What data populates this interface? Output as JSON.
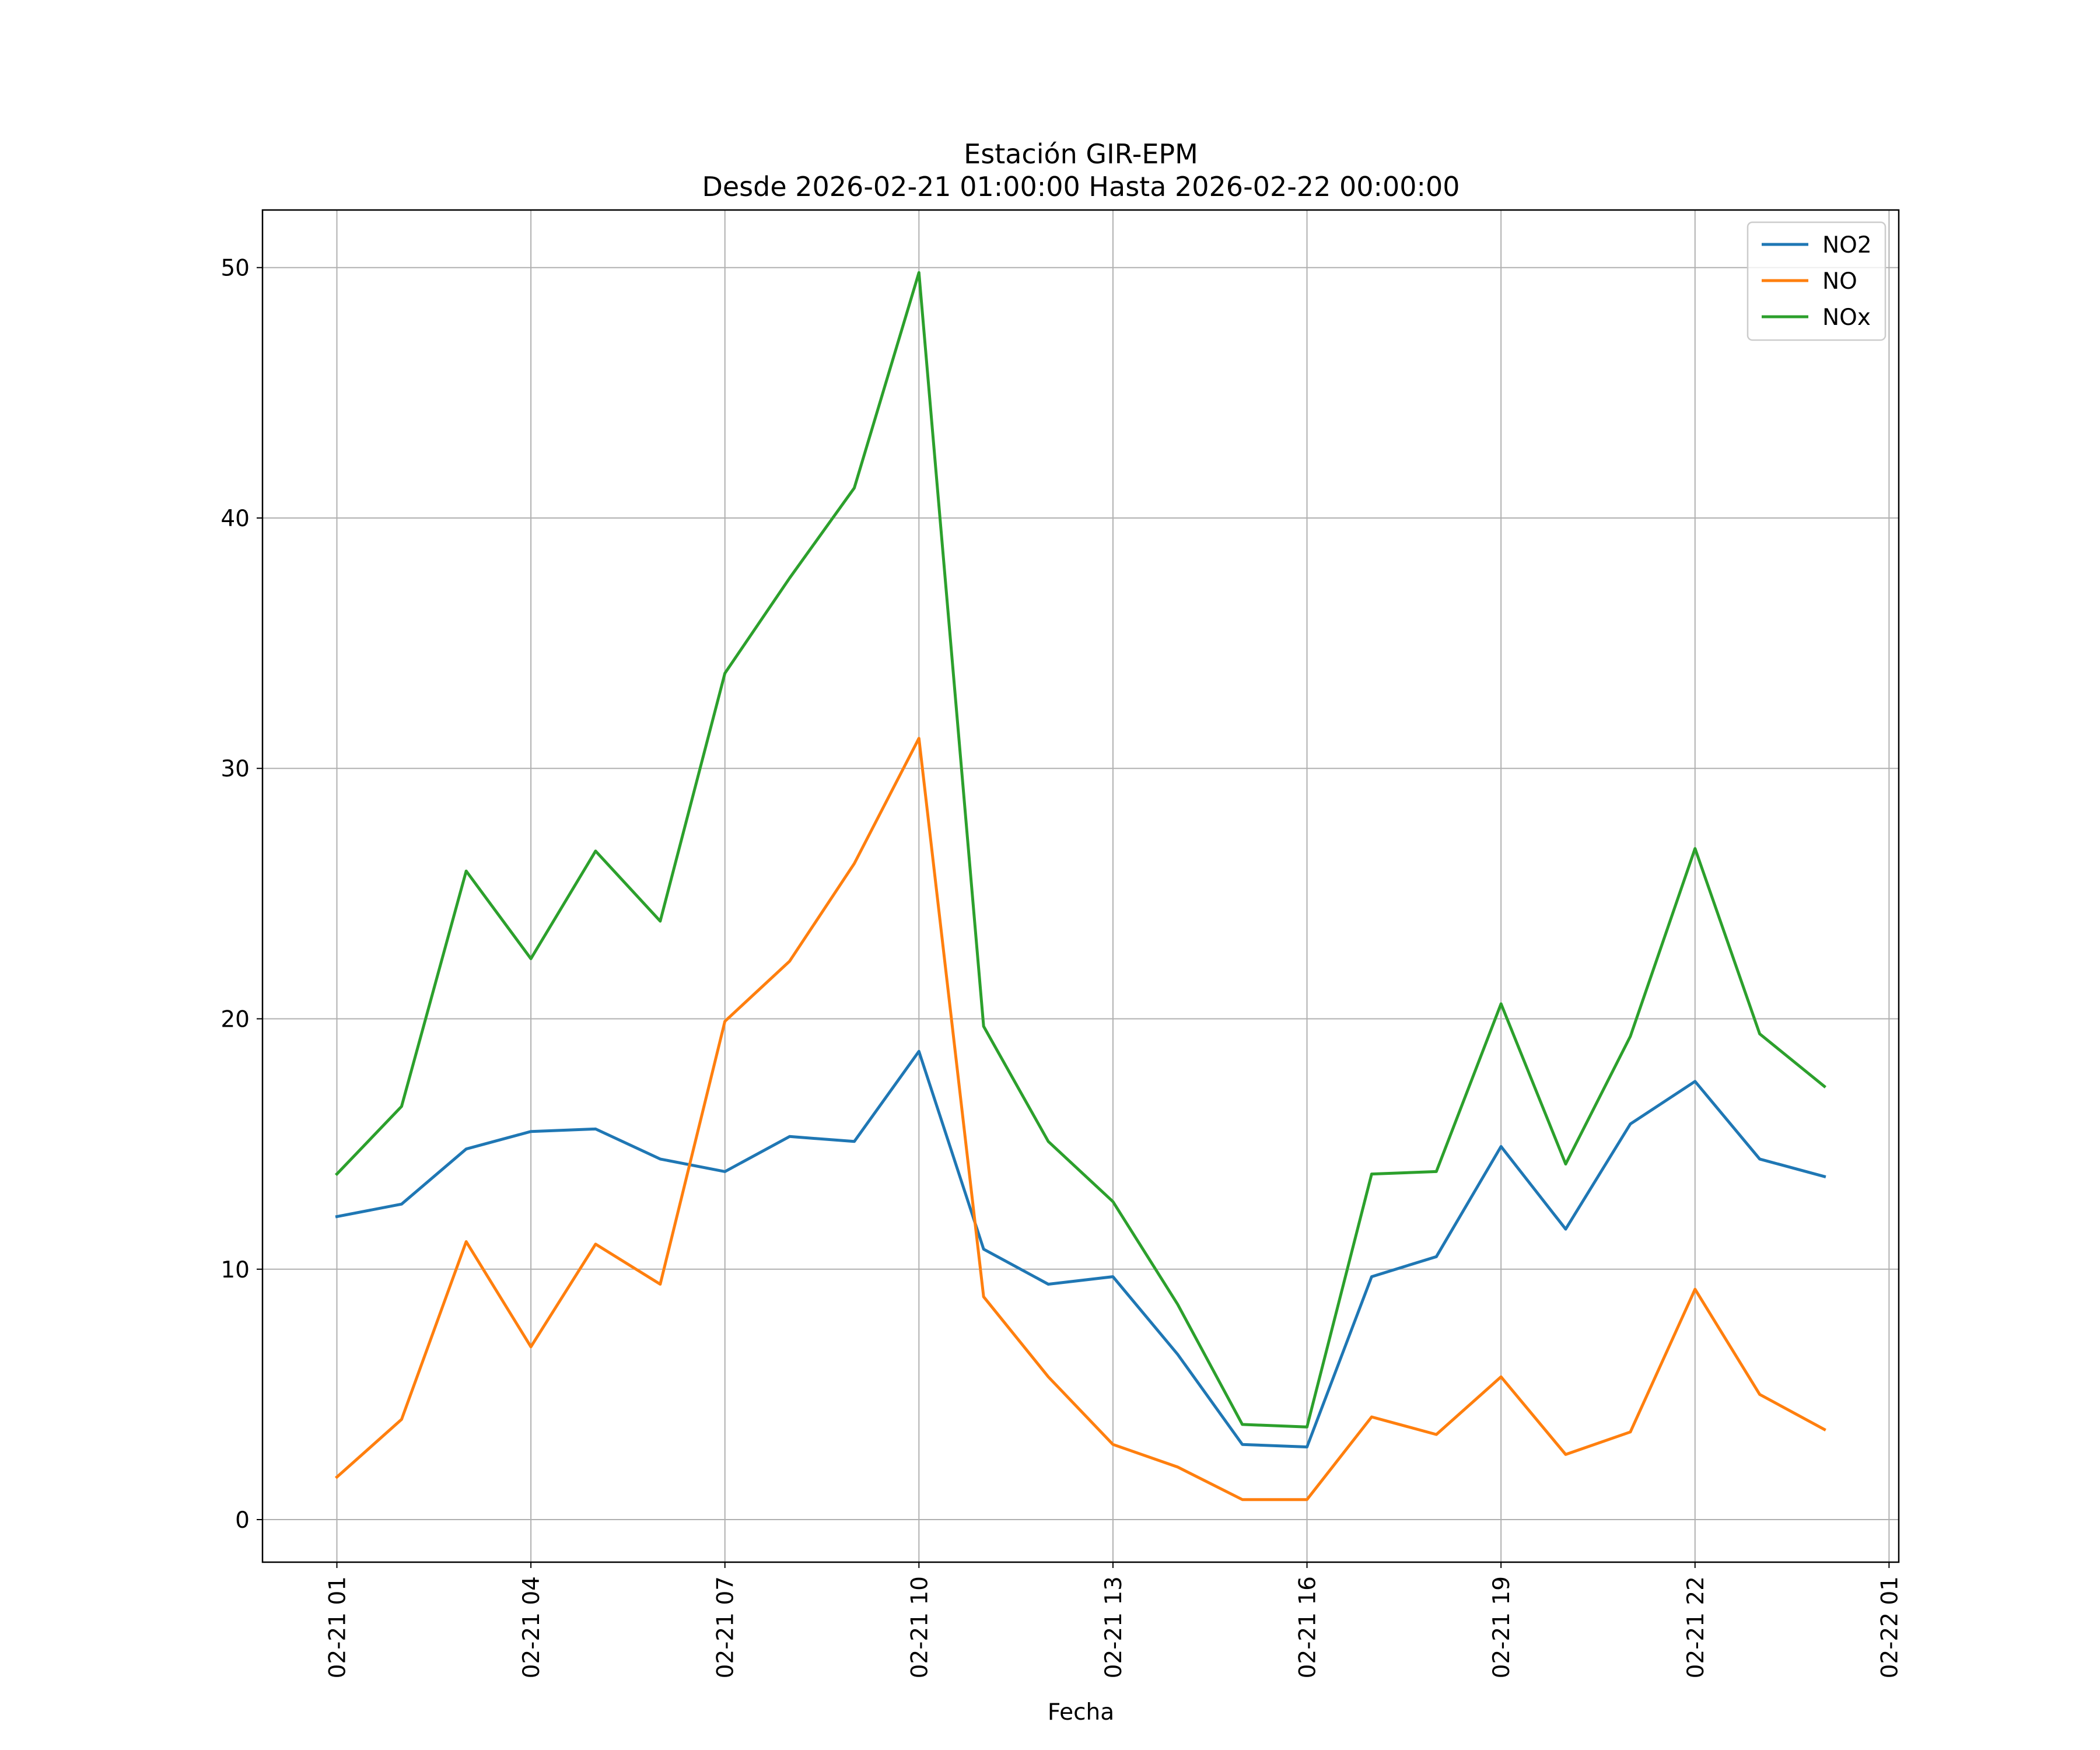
{
  "chart_data": {
    "type": "line",
    "title": "Estación GIR-EPM",
    "subtitle": "Desde 2026-02-21 01:00:00 Hasta 2026-02-22 00:00:00",
    "xlabel": "Fecha",
    "ylabel": "",
    "x": [
      "02-21 01",
      "02-21 02",
      "02-21 03",
      "02-21 04",
      "02-21 05",
      "02-21 06",
      "02-21 07",
      "02-21 08",
      "02-21 09",
      "02-21 10",
      "02-21 11",
      "02-21 12",
      "02-21 13",
      "02-21 14",
      "02-21 15",
      "02-21 16",
      "02-21 17",
      "02-21 18",
      "02-21 19",
      "02-21 20",
      "02-21 21",
      "02-21 22",
      "02-21 23",
      "02-22 00"
    ],
    "x_ticks": [
      "02-21 01",
      "02-21 04",
      "02-21 07",
      "02-21 10",
      "02-21 13",
      "02-21 16",
      "02-21 19",
      "02-21 22",
      "02-22 01"
    ],
    "x_tick_hours": [
      0,
      3,
      6,
      9,
      12,
      15,
      18,
      21,
      24
    ],
    "x_range_hours": [
      -1.15,
      24.15
    ],
    "y_ticks": [
      0,
      10,
      20,
      30,
      40,
      50
    ],
    "ylim": [
      -1.7,
      52.3
    ],
    "grid": true,
    "legend_position": "upper right",
    "series": [
      {
        "name": "NO2",
        "color": "#1f77b4",
        "values": [
          12.1,
          12.6,
          14.8,
          15.5,
          15.6,
          14.4,
          13.9,
          15.3,
          15.1,
          18.7,
          10.8,
          9.4,
          9.7,
          6.6,
          3.0,
          2.9,
          9.7,
          10.5,
          14.9,
          11.6,
          15.8,
          17.5,
          14.4,
          13.7
        ]
      },
      {
        "name": "NO",
        "color": "#ff7f0e",
        "values": [
          1.7,
          4.0,
          11.1,
          6.9,
          11.0,
          9.4,
          19.9,
          22.3,
          26.2,
          31.2,
          8.9,
          5.7,
          3.0,
          2.1,
          0.8,
          0.8,
          4.1,
          3.4,
          5.7,
          2.6,
          3.5,
          9.2,
          5.0,
          3.6
        ]
      },
      {
        "name": "NOx",
        "color": "#2ca02c",
        "values": [
          13.8,
          16.5,
          25.9,
          22.4,
          26.7,
          23.9,
          33.8,
          37.6,
          41.2,
          49.8,
          19.7,
          15.1,
          12.7,
          8.6,
          3.8,
          3.7,
          13.8,
          13.9,
          20.6,
          14.2,
          19.3,
          26.8,
          19.4,
          17.3
        ]
      }
    ]
  }
}
